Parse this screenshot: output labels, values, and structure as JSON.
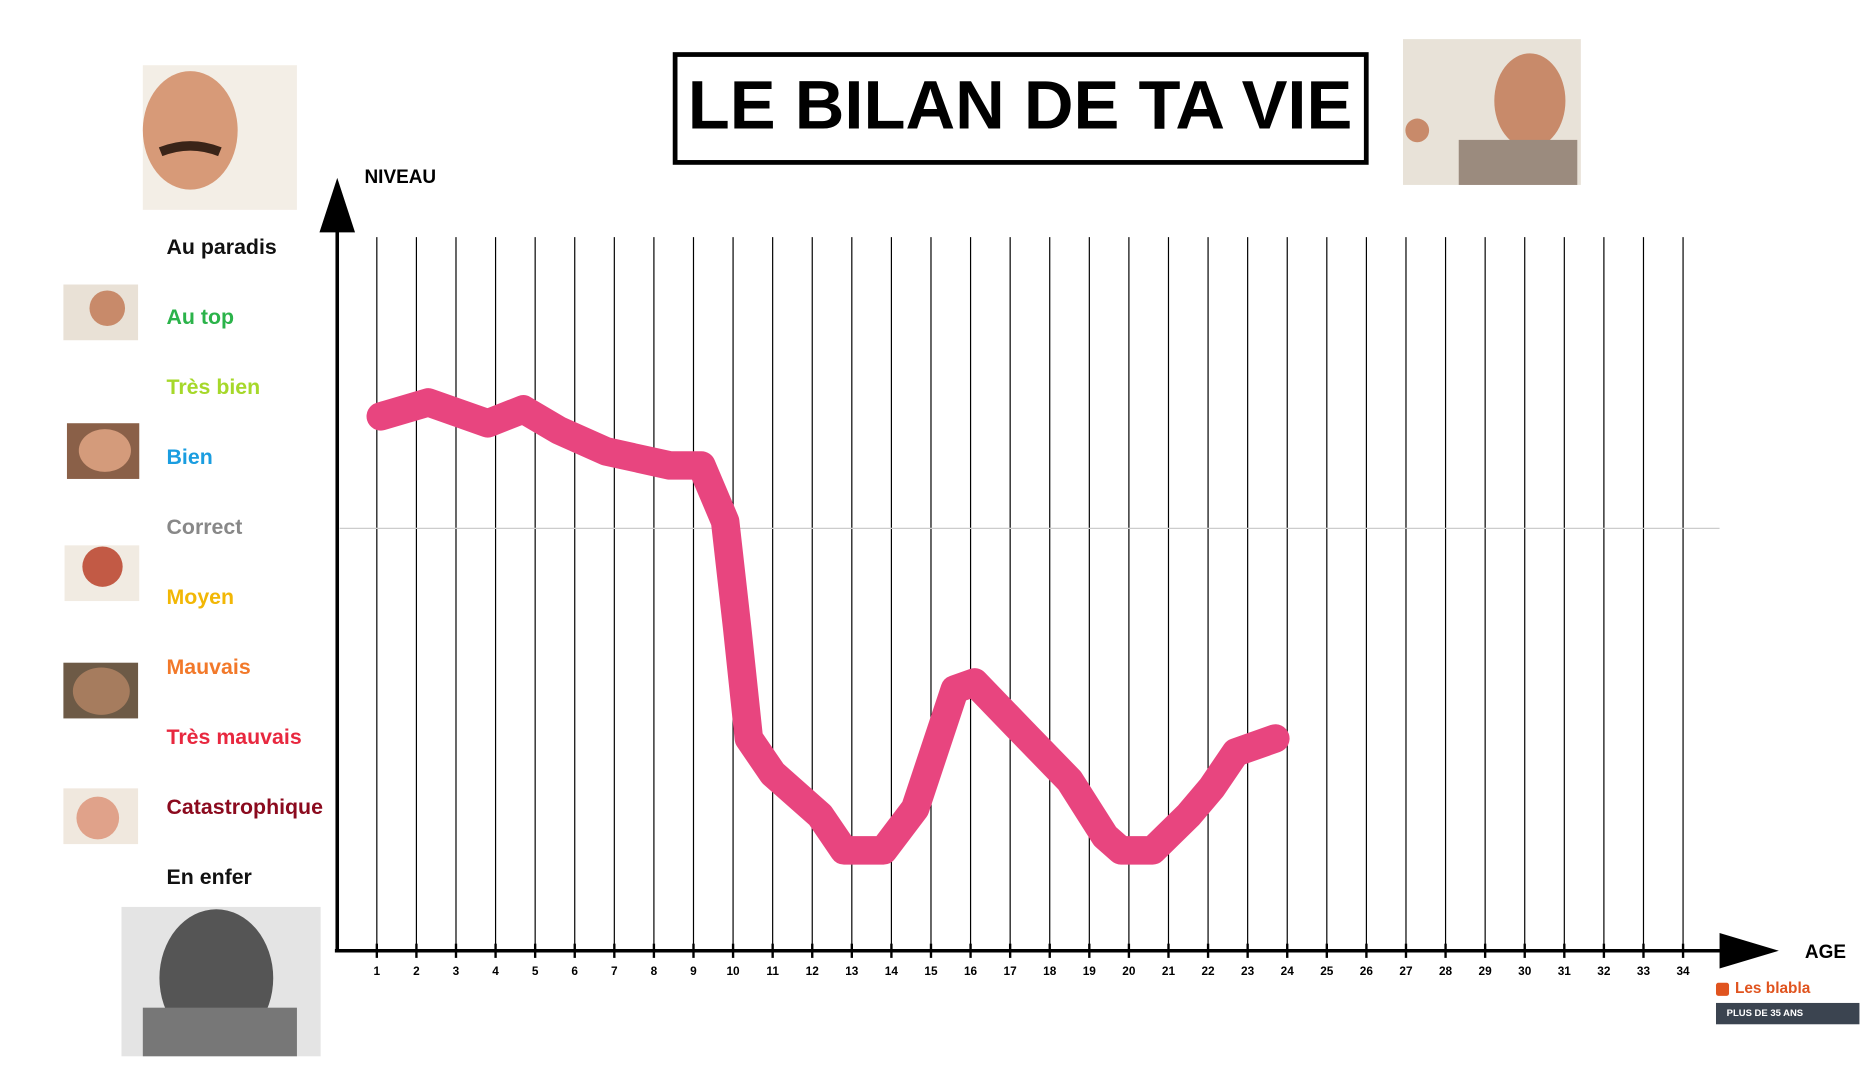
{
  "chart_data": {
    "type": "line",
    "title": "LE BILAN DE TA VIE",
    "y_label": "NIVEAU",
    "x_label": "AGE",
    "x": [
      1.1,
      2.3,
      3.8,
      4.7,
      5.6,
      6.8,
      8.4,
      9.2,
      9.8,
      10.1,
      10.4,
      11.0,
      12.2,
      12.8,
      13.8,
      14.6,
      15.6,
      16.1,
      17.3,
      18.5,
      19.4,
      19.8,
      20.6,
      21.5,
      22.1,
      22.7,
      23.7
    ],
    "series": [
      {
        "color": "#e8457f",
        "values": [
          6.6,
          6.8,
          6.5,
          6.7,
          6.4,
          6.1,
          5.9,
          5.9,
          5.1,
          3.6,
          2.0,
          1.5,
          0.9,
          0.4,
          0.4,
          1.0,
          2.7,
          2.8,
          2.1,
          1.4,
          0.6,
          0.4,
          0.4,
          0.9,
          1.3,
          1.8,
          2.0
        ]
      }
    ],
    "xlim": [
      0,
      36
    ],
    "xticks": [
      1,
      2,
      3,
      4,
      5,
      6,
      7,
      8,
      9,
      10,
      11,
      12,
      13,
      14,
      15,
      16,
      17,
      18,
      19,
      20,
      21,
      22,
      23,
      24,
      25,
      26,
      27,
      28,
      29,
      30,
      31,
      32,
      33,
      34
    ],
    "ylim": [
      -1,
      9.5
    ],
    "yticks": [
      {
        "value": 9,
        "label": "Au paradis"
      },
      {
        "value": 8,
        "label": "Au top"
      },
      {
        "value": 7,
        "label": "Très bien"
      },
      {
        "value": 6,
        "label": "Bien"
      },
      {
        "value": 5,
        "label": "Correct"
      },
      {
        "value": 4,
        "label": "Moyen"
      },
      {
        "value": 3,
        "label": "Mauvais"
      },
      {
        "value": 2,
        "label": "Très mauvais"
      },
      {
        "value": 1,
        "label": "Catastrophique"
      },
      {
        "value": 0,
        "label": "En enfer"
      }
    ],
    "ytick_colors": [
      "#111111",
      "#2bb34a",
      "#a6d82a",
      "#1a9de0",
      "#888888",
      "#f2b705",
      "#f2792a",
      "#e8283f",
      "#8b0a1e",
      "#111111"
    ],
    "reference_line": 5,
    "grid": true
  },
  "footer": {
    "channel": "Les blabla",
    "tag": "PLUS DE 35 ANS"
  }
}
